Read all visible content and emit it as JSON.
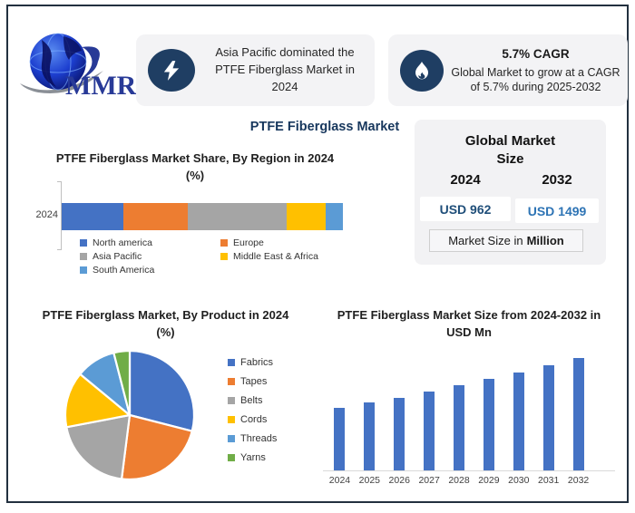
{
  "frame": {
    "border_color": "#22303F"
  },
  "logo": {
    "text": "MMR",
    "color": "#283A97"
  },
  "header": {
    "highlight": {
      "text": "Asia Pacific dominated the PTFE Fiberglass Market in 2024"
    },
    "cagr": {
      "title": "5.7% CAGR",
      "text": "Global Market to grow at a CAGR of 5.7% during 2025-2032"
    }
  },
  "main_title": "PTFE Fiberglass Market",
  "market_size_panel": {
    "title": "Global Market Size",
    "col1_year": "2024",
    "col1_value": "USD 962",
    "col1_value_color": "#1F4E79",
    "col2_year": "2032",
    "col2_value": "USD 1499",
    "col2_value_color": "#2E74B5",
    "note_text": "Market Size in",
    "note_bold": "Million"
  },
  "chart_data": [
    {
      "type": "bar",
      "subtype": "horizontal-stacked",
      "title": "PTFE Fiberglass Market Share, By Region in 2024 (%)",
      "categories": [
        "2024"
      ],
      "series": [
        {
          "name": "North america",
          "value": 22,
          "color": "#4472C4"
        },
        {
          "name": "Europe",
          "value": 23,
          "color": "#ED7D31"
        },
        {
          "name": "Asia Pacific",
          "value": 35,
          "color": "#A5A5A5"
        },
        {
          "name": "Middle East & Africa",
          "value": 14,
          "color": "#FFC000"
        },
        {
          "name": "South America",
          "value": 6,
          "color": "#5B9BD5"
        }
      ],
      "xlim": [
        0,
        100
      ],
      "legend_position": "bottom"
    },
    {
      "type": "pie",
      "title": "PTFE Fiberglass Market, By Product in 2024 (%)",
      "labels": [
        "Fabrics",
        "Tapes",
        "Belts",
        "Cords",
        "Threads",
        "Yarns"
      ],
      "values": [
        29,
        23,
        20,
        14,
        10,
        4
      ],
      "colors": [
        "#4472C4",
        "#ED7D31",
        "#A5A5A5",
        "#FFC000",
        "#5B9BD5",
        "#70AD47"
      ],
      "legend_position": "right"
    },
    {
      "type": "bar",
      "title": "PTFE Fiberglass Market Size from 2024-2032 in USD Mn",
      "categories": [
        "2024",
        "2025",
        "2026",
        "2027",
        "2028",
        "2029",
        "2030",
        "2031",
        "2032"
      ],
      "values": [
        962,
        1017,
        1075,
        1136,
        1201,
        1269,
        1342,
        1418,
        1499
      ],
      "bar_color": "#4472C4",
      "ylim": [
        300,
        1600
      ],
      "ylabel": "USD Mn",
      "grid": false
    }
  ]
}
